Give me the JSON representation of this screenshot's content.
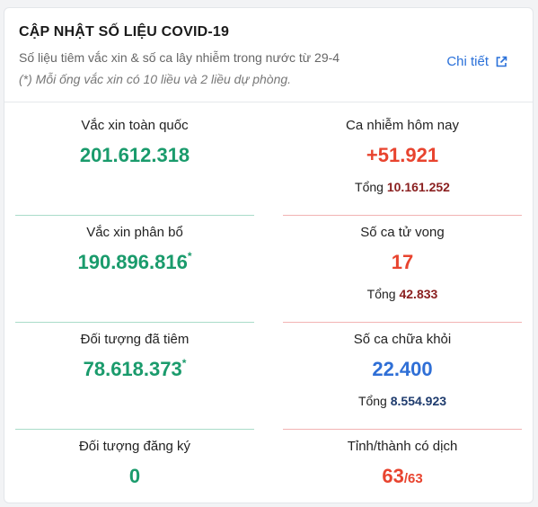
{
  "header": {
    "title": "CẬP NHẬT SỐ LIỆU COVID-19",
    "subtitle": "Số liệu tiêm vắc xin & số ca lây nhiễm trong nước từ 29-4",
    "note": "(*) Mỗi ống vắc xin có 10 liều và 2 liều dự phòng.",
    "detail_label": "Chi tiết",
    "detail_icon": "external-link-icon"
  },
  "vaccine": {
    "national_label": "Vắc xin toàn quốc",
    "national_value": "201.612.318",
    "allocated_label": "Vắc xin phân bổ",
    "allocated_value": "190.896.816",
    "allocated_mark": "*",
    "vaccinated_label": "Đối tượng đã tiêm",
    "vaccinated_value": "78.618.373",
    "vaccinated_mark": "*",
    "registered_label": "Đối tượng đăng ký",
    "registered_value": "0"
  },
  "cases": {
    "today_label": "Ca nhiễm hôm nay",
    "today_value": "+51.921",
    "today_total_label": "Tổng",
    "today_total_value": "10.161.252",
    "deaths_label": "Số ca tử vong",
    "deaths_value": "17",
    "deaths_total_label": "Tổng",
    "deaths_total_value": "42.833",
    "recovered_label": "Số ca chữa khỏi",
    "recovered_value": "22.400",
    "recovered_total_label": "Tổng",
    "recovered_total_value": "8.554.923",
    "provinces_label": "Tỉnh/thành có dịch",
    "provinces_value": "63",
    "provinces_of": "/63"
  },
  "colors": {
    "green": "#1a9b6c",
    "red": "#e8442f",
    "blue": "#2f6fd6",
    "link": "#2970d9"
  }
}
